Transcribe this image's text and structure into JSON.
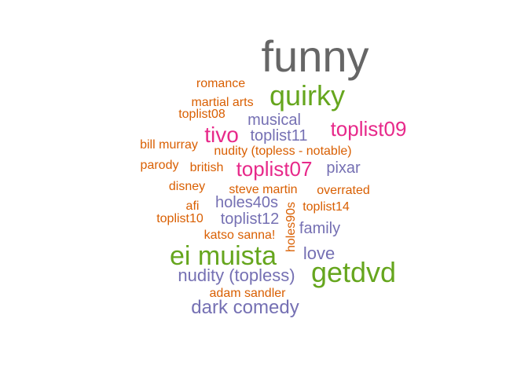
{
  "palette": {
    "gray": "#666666",
    "green": "#66a61e",
    "magenta": "#e7298a",
    "purple": "#7570b3",
    "orange": "#d95f02"
  },
  "words": [
    {
      "text": "funny",
      "color": "gray",
      "weight": 1.0
    },
    {
      "text": "quirky",
      "color": "green",
      "weight": 0.55
    },
    {
      "text": "romance",
      "color": "orange",
      "weight": 0.2
    },
    {
      "text": "martial arts",
      "color": "orange",
      "weight": 0.2
    },
    {
      "text": "toplist08",
      "color": "orange",
      "weight": 0.2
    },
    {
      "text": "musical",
      "color": "purple",
      "weight": 0.3
    },
    {
      "text": "tivo",
      "color": "magenta",
      "weight": 0.45
    },
    {
      "text": "toplist11",
      "color": "purple",
      "weight": 0.3
    },
    {
      "text": "toplist09",
      "color": "magenta",
      "weight": 0.45
    },
    {
      "text": "bill murray",
      "color": "orange",
      "weight": 0.2
    },
    {
      "text": "nudity (topless - notable)",
      "color": "orange",
      "weight": 0.2
    },
    {
      "text": "parody",
      "color": "orange",
      "weight": 0.2
    },
    {
      "text": "british",
      "color": "orange",
      "weight": 0.2
    },
    {
      "text": "toplist07",
      "color": "magenta",
      "weight": 0.45
    },
    {
      "text": "pixar",
      "color": "purple",
      "weight": 0.3
    },
    {
      "text": "disney",
      "color": "orange",
      "weight": 0.2
    },
    {
      "text": "steve martin",
      "color": "orange",
      "weight": 0.2
    },
    {
      "text": "overrated",
      "color": "orange",
      "weight": 0.2
    },
    {
      "text": "holes40s",
      "color": "purple",
      "weight": 0.3
    },
    {
      "text": "afi",
      "color": "orange",
      "weight": 0.2
    },
    {
      "text": "toplist14",
      "color": "orange",
      "weight": 0.2
    },
    {
      "text": "toplist10",
      "color": "orange",
      "weight": 0.2
    },
    {
      "text": "toplist12",
      "color": "purple",
      "weight": 0.3
    },
    {
      "text": "holes90s",
      "color": "orange",
      "weight": 0.2,
      "vertical": true
    },
    {
      "text": "family",
      "color": "purple",
      "weight": 0.3
    },
    {
      "text": "katso sanna!",
      "color": "orange",
      "weight": 0.2
    },
    {
      "text": "ei muista",
      "color": "green",
      "weight": 0.55
    },
    {
      "text": "love",
      "color": "purple",
      "weight": 0.3
    },
    {
      "text": "nudity (topless)",
      "color": "purple",
      "weight": 0.3
    },
    {
      "text": "getdvd",
      "color": "green",
      "weight": 0.55
    },
    {
      "text": "adam sandler",
      "color": "orange",
      "weight": 0.2
    },
    {
      "text": "dark comedy",
      "color": "purple",
      "weight": 0.3
    }
  ]
}
